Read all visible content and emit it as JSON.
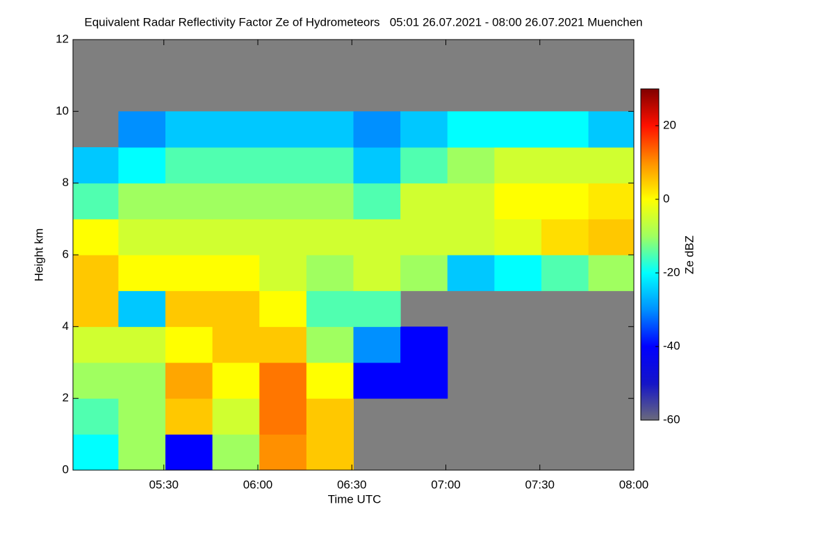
{
  "chart_data": {
    "type": "heatmap",
    "title": "Equivalent Radar Reflectivity Factor Ze of Hydrometeors   05:01 26.07.2021 - 08:00 26.07.2021 Muenchen",
    "x_label": "Time UTC",
    "y_label": "Height km",
    "colorbar_label": "Ze dBZ",
    "x": [
      308,
      323,
      338,
      353,
      368,
      383,
      398,
      413,
      428,
      443,
      458,
      473
    ],
    "x_bin_width": 15,
    "y": [
      0.5,
      1.5,
      2.5,
      3.5,
      4.5,
      5.5,
      6.5,
      7.5,
      8.5,
      9.5,
      10.5,
      11.5
    ],
    "y_bin_height": 1,
    "z": [
      [
        -20,
        -10,
        -40,
        -10,
        10,
        5,
        null,
        null,
        null,
        null,
        null,
        null
      ],
      [
        -15,
        -10,
        5,
        -5,
        12,
        5,
        null,
        null,
        null,
        null,
        null,
        null
      ],
      [
        -10,
        -10,
        8,
        0,
        12,
        0,
        -40,
        -40,
        null,
        null,
        null,
        null
      ],
      [
        -5,
        -5,
        0,
        5,
        5,
        -10,
        -30,
        -40,
        null,
        null,
        null,
        null
      ],
      [
        5,
        -25,
        5,
        5,
        0,
        -15,
        -15,
        null,
        null,
        null,
        null,
        null
      ],
      [
        5,
        0,
        0,
        0,
        -5,
        -10,
        -5,
        -10,
        -25,
        -20,
        -15,
        -10
      ],
      [
        0,
        -5,
        -5,
        -5,
        -5,
        -5,
        -5,
        -5,
        -5,
        -3,
        3,
        5
      ],
      [
        -15,
        -10,
        -10,
        -10,
        -10,
        -10,
        -15,
        -5,
        -5,
        0,
        0,
        2
      ],
      [
        -25,
        -20,
        -15,
        -15,
        -15,
        -15,
        -25,
        -15,
        -10,
        -5,
        -5,
        -5
      ],
      [
        null,
        -30,
        -25,
        -25,
        -25,
        -25,
        -30,
        -25,
        -20,
        -20,
        -20,
        -25
      ],
      [
        null,
        null,
        null,
        null,
        null,
        null,
        null,
        null,
        null,
        null,
        null,
        null
      ],
      [
        null,
        null,
        null,
        null,
        null,
        null,
        null,
        null,
        null,
        null,
        null,
        null
      ]
    ],
    "xlim": [
      301,
      480
    ],
    "xticks": [
      {
        "value": 330,
        "label": "05:30"
      },
      {
        "value": 360,
        "label": "06:00"
      },
      {
        "value": 390,
        "label": "06:30"
      },
      {
        "value": 420,
        "label": "07:00"
      },
      {
        "value": 450,
        "label": "07:30"
      },
      {
        "value": 480,
        "label": "08:00"
      }
    ],
    "ylim": [
      0,
      12
    ],
    "yticks": [
      0,
      2,
      4,
      6,
      8,
      10,
      12
    ],
    "zlim": [
      -60,
      30
    ],
    "zticks": [
      -60,
      -40,
      -20,
      0,
      20
    ],
    "colormap": [
      "#6a6a7c",
      "#1414c8",
      "#0000ff",
      "#0090ff",
      "#00ffff",
      "#a0ff60",
      "#ffff00",
      "#ff9000",
      "#ff1000",
      "#800000"
    ],
    "missing_color": "#7f7f7f"
  }
}
